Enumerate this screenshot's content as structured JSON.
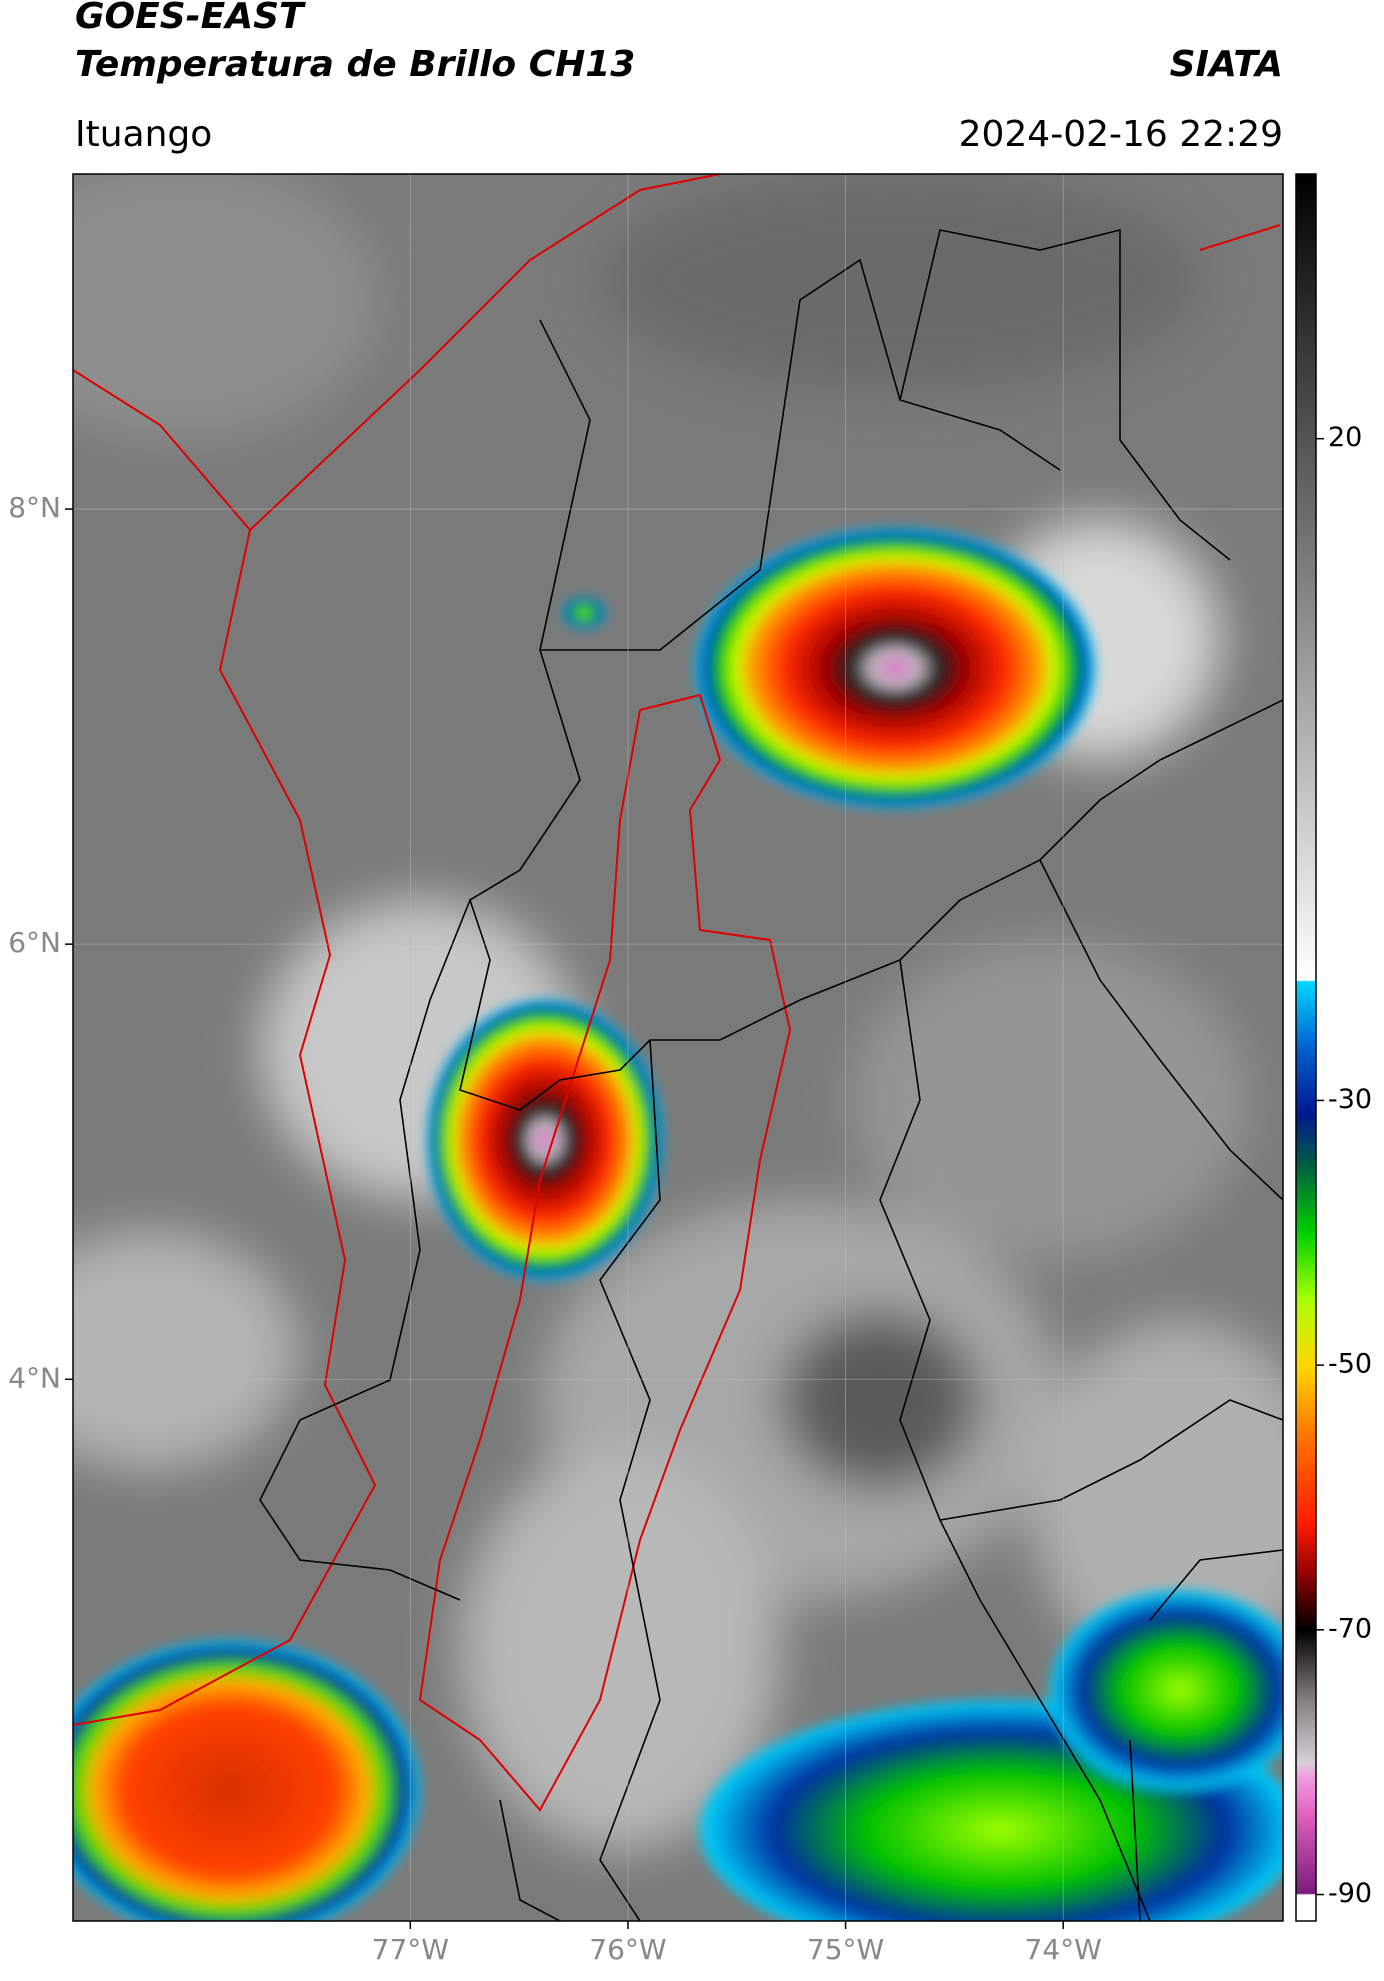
{
  "header": {
    "title": "GOES-EAST",
    "subtitle": "Temperatura de Brillo CH13",
    "source": "SIATA",
    "location": "Ituango",
    "datetime": "2024-02-16 22:29"
  },
  "map": {
    "lonlim": [
      -78.55,
      -72.99
    ],
    "latlim": [
      1.51,
      9.54
    ],
    "lonticks": [
      {
        "value": -77,
        "label": "77°W"
      },
      {
        "value": -76,
        "label": "76°W"
      },
      {
        "value": -75,
        "label": "75°W"
      },
      {
        "value": -74,
        "label": "74°W"
      }
    ],
    "latticks": [
      {
        "value": 8,
        "label": "8°N"
      },
      {
        "value": 6,
        "label": "6°N"
      },
      {
        "value": 4,
        "label": "4°N"
      }
    ],
    "grid": true
  },
  "colorbar": {
    "lim": [
      -92,
      40
    ],
    "ticks": [
      20,
      -30,
      -50,
      -70,
      -90
    ],
    "stops": [
      {
        "value": -92,
        "color": "#ffffff"
      },
      {
        "value": -90,
        "color": "#ffffff"
      },
      {
        "value": -89.9,
        "color": "#7a1a7a"
      },
      {
        "value": -84,
        "color": "#e060c0"
      },
      {
        "value": -81,
        "color": "#f0a0e0"
      },
      {
        "value": -80,
        "color": "#d8d0d8"
      },
      {
        "value": -75,
        "color": "#807878"
      },
      {
        "value": -70,
        "color": "#000000"
      },
      {
        "value": -66,
        "color": "#8a0000"
      },
      {
        "value": -62,
        "color": "#ff1a00"
      },
      {
        "value": -55,
        "color": "#ff7a00"
      },
      {
        "value": -50,
        "color": "#ffd800"
      },
      {
        "value": -45,
        "color": "#aaff00"
      },
      {
        "value": -40,
        "color": "#00d000"
      },
      {
        "value": -35,
        "color": "#006040"
      },
      {
        "value": -31,
        "color": "#001890"
      },
      {
        "value": -26,
        "color": "#0060d0"
      },
      {
        "value": -21,
        "color": "#00d8ff"
      },
      {
        "value": -20.9,
        "color": "#ffffff"
      },
      {
        "value": 40,
        "color": "#000000"
      }
    ]
  }
}
